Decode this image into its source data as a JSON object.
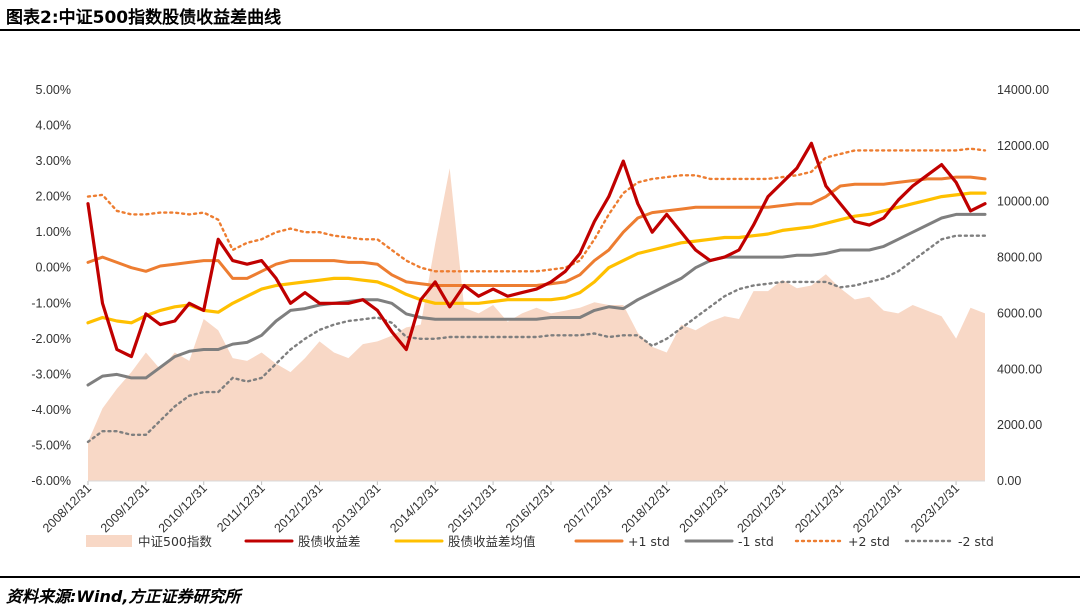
{
  "header": {
    "title": "图表2:中证500指数股债收益差曲线"
  },
  "footer": {
    "source": "资料来源:Wind,方正证券研究所"
  },
  "colors": {
    "index_area": "#f8d8c6",
    "spread": "#c00000",
    "mean": "#ffc000",
    "plus1": "#ed7d31",
    "minus1": "#7f7f7f",
    "plus2": "#ed7d31",
    "minus2": "#7f7f7f"
  },
  "chart_data": {
    "type": "line",
    "title": "",
    "xlabel": "",
    "ylabel": "",
    "y_left": {
      "ticks": [
        "5.00%",
        "4.00%",
        "3.00%",
        "2.00%",
        "1.00%",
        "0.00%",
        "-1.00%",
        "-2.00%",
        "-3.00%",
        "-4.00%",
        "-5.00%",
        "-6.00%"
      ],
      "range": [
        -6,
        5
      ],
      "unit": "%"
    },
    "y_right": {
      "ticks": [
        "14000.00",
        "12000.00",
        "10000.00",
        "8000.00",
        "6000.00",
        "4000.00",
        "2000.00",
        "0.00"
      ],
      "range": [
        0,
        14000
      ]
    },
    "x_ticks": [
      "2008/12/31",
      "2009/12/31",
      "2010/12/31",
      "2011/12/31",
      "2012/12/31",
      "2013/12/31",
      "2014/12/31",
      "2015/12/31",
      "2016/12/31",
      "2017/12/31",
      "2018/12/31",
      "2019/12/31",
      "2020/12/31",
      "2021/12/31",
      "2022/12/31",
      "2023/12/31"
    ],
    "legend": [
      "中证500指数",
      "股债收益差",
      "股债收益差均值",
      "+1 std",
      "-1 std",
      "+2 std",
      "-2 std"
    ],
    "legend_position": "bottom",
    "grid": false,
    "x_years": [
      2009.0,
      2009.25,
      2009.5,
      2009.75,
      2010.0,
      2010.25,
      2010.5,
      2010.75,
      2011.0,
      2011.25,
      2011.5,
      2011.75,
      2012.0,
      2012.25,
      2012.5,
      2012.75,
      2013.0,
      2013.25,
      2013.5,
      2013.75,
      2014.0,
      2014.25,
      2014.5,
      2014.75,
      2015.0,
      2015.25,
      2015.5,
      2015.75,
      2016.0,
      2016.25,
      2016.5,
      2016.75,
      2017.0,
      2017.25,
      2017.5,
      2017.75,
      2018.0,
      2018.25,
      2018.5,
      2018.75,
      2019.0,
      2019.25,
      2019.5,
      2019.75,
      2020.0,
      2020.25,
      2020.5,
      2020.75,
      2021.0,
      2021.25,
      2021.5,
      2021.75,
      2022.0,
      2022.25,
      2022.5,
      2022.75,
      2023.0,
      2023.25,
      2023.5,
      2023.75,
      2024.0,
      2024.25,
      2024.5
    ],
    "series": [
      {
        "name": "中证500指数",
        "axis": "right",
        "kind": "area",
        "values": [
          1400,
          2600,
          3300,
          3900,
          4600,
          4000,
          4600,
          4300,
          5800,
          5400,
          4400,
          4300,
          4600,
          4200,
          3900,
          4400,
          5000,
          4600,
          4400,
          4900,
          5000,
          5200,
          5500,
          5600,
          8500,
          11200,
          6200,
          6000,
          6300,
          5700,
          6000,
          6200,
          6000,
          6100,
          6200,
          6400,
          6300,
          6300,
          5300,
          4800,
          4600,
          5600,
          5400,
          5700,
          5900,
          5800,
          6800,
          6800,
          7200,
          6900,
          7000,
          7400,
          6900,
          6500,
          6600,
          6100,
          6000,
          6300,
          6100,
          5900,
          5100,
          6200,
          6000
        ]
      },
      {
        "name": "股债收益差",
        "axis": "left",
        "kind": "line",
        "values": [
          1.8,
          -1.0,
          -2.3,
          -2.5,
          -1.3,
          -1.6,
          -1.5,
          -1.0,
          -1.2,
          0.8,
          0.2,
          0.1,
          0.2,
          -0.3,
          -1.0,
          -0.7,
          -1.0,
          -1.0,
          -1.0,
          -0.9,
          -1.2,
          -1.8,
          -2.3,
          -0.9,
          -0.4,
          -1.1,
          -0.5,
          -0.8,
          -0.6,
          -0.8,
          -0.7,
          -0.6,
          -0.4,
          -0.1,
          0.4,
          1.3,
          2.0,
          3.0,
          1.8,
          1.0,
          1.5,
          1.0,
          0.5,
          0.2,
          0.3,
          0.5,
          1.2,
          2.0,
          2.4,
          2.8,
          3.5,
          2.3,
          1.8,
          1.3,
          1.2,
          1.4,
          1.9,
          2.3,
          2.6,
          2.9,
          2.4,
          1.6,
          1.8
        ]
      },
      {
        "name": "股债收益差均值",
        "axis": "left",
        "kind": "line",
        "values": [
          -1.55,
          -1.4,
          -1.5,
          -1.55,
          -1.35,
          -1.2,
          -1.1,
          -1.05,
          -1.2,
          -1.25,
          -1.0,
          -0.8,
          -0.6,
          -0.5,
          -0.45,
          -0.4,
          -0.35,
          -0.3,
          -0.3,
          -0.35,
          -0.4,
          -0.55,
          -0.75,
          -0.9,
          -1.0,
          -1.0,
          -1.0,
          -1.0,
          -0.95,
          -0.9,
          -0.9,
          -0.9,
          -0.9,
          -0.85,
          -0.7,
          -0.4,
          0.0,
          0.2,
          0.4,
          0.5,
          0.6,
          0.7,
          0.75,
          0.8,
          0.85,
          0.85,
          0.9,
          0.95,
          1.05,
          1.1,
          1.15,
          1.25,
          1.35,
          1.45,
          1.5,
          1.6,
          1.7,
          1.8,
          1.9,
          2.0,
          2.05,
          2.1,
          2.1
        ]
      },
      {
        "name": "+1 std",
        "axis": "left",
        "kind": "line",
        "values": [
          0.15,
          0.3,
          0.15,
          0.0,
          -0.1,
          0.05,
          0.1,
          0.15,
          0.2,
          0.2,
          -0.3,
          -0.3,
          -0.1,
          0.1,
          0.2,
          0.2,
          0.2,
          0.2,
          0.15,
          0.15,
          0.1,
          -0.2,
          -0.4,
          -0.45,
          -0.5,
          -0.5,
          -0.5,
          -0.5,
          -0.5,
          -0.5,
          -0.5,
          -0.5,
          -0.45,
          -0.4,
          -0.2,
          0.2,
          0.5,
          1.0,
          1.4,
          1.55,
          1.6,
          1.65,
          1.7,
          1.7,
          1.7,
          1.7,
          1.7,
          1.7,
          1.75,
          1.8,
          1.8,
          2.0,
          2.3,
          2.35,
          2.35,
          2.35,
          2.4,
          2.45,
          2.5,
          2.5,
          2.55,
          2.55,
          2.5
        ]
      },
      {
        "name": "-1 std",
        "axis": "left",
        "kind": "line",
        "values": [
          -3.3,
          -3.05,
          -3.0,
          -3.1,
          -3.1,
          -2.8,
          -2.5,
          -2.35,
          -2.3,
          -2.3,
          -2.15,
          -2.1,
          -1.9,
          -1.5,
          -1.2,
          -1.15,
          -1.05,
          -1.0,
          -0.95,
          -0.9,
          -0.9,
          -1.0,
          -1.3,
          -1.4,
          -1.45,
          -1.45,
          -1.45,
          -1.45,
          -1.45,
          -1.45,
          -1.45,
          -1.45,
          -1.4,
          -1.4,
          -1.4,
          -1.2,
          -1.1,
          -1.15,
          -0.9,
          -0.7,
          -0.5,
          -0.3,
          0.0,
          0.2,
          0.3,
          0.3,
          0.3,
          0.3,
          0.3,
          0.35,
          0.35,
          0.4,
          0.5,
          0.5,
          0.5,
          0.6,
          0.8,
          1.0,
          1.2,
          1.4,
          1.5,
          1.5,
          1.5
        ]
      },
      {
        "name": "+2 std",
        "axis": "left",
        "kind": "line",
        "values": [
          2.0,
          2.05,
          1.6,
          1.5,
          1.5,
          1.55,
          1.55,
          1.5,
          1.55,
          1.35,
          0.5,
          0.7,
          0.8,
          1.0,
          1.1,
          1.0,
          1.0,
          0.9,
          0.85,
          0.8,
          0.8,
          0.5,
          0.2,
          0.0,
          -0.1,
          -0.1,
          -0.1,
          -0.1,
          -0.1,
          -0.1,
          -0.1,
          -0.1,
          -0.05,
          0.0,
          0.2,
          0.8,
          1.5,
          2.1,
          2.4,
          2.5,
          2.55,
          2.6,
          2.6,
          2.5,
          2.5,
          2.5,
          2.5,
          2.5,
          2.55,
          2.6,
          2.7,
          3.1,
          3.2,
          3.3,
          3.3,
          3.3,
          3.3,
          3.3,
          3.3,
          3.3,
          3.3,
          3.35,
          3.3
        ]
      },
      {
        "name": "-2 std",
        "axis": "left",
        "kind": "line",
        "values": [
          -4.9,
          -4.6,
          -4.6,
          -4.7,
          -4.7,
          -4.3,
          -3.9,
          -3.6,
          -3.5,
          -3.5,
          -3.1,
          -3.2,
          -3.1,
          -2.7,
          -2.3,
          -2.0,
          -1.75,
          -1.6,
          -1.5,
          -1.45,
          -1.4,
          -1.55,
          -1.95,
          -2.0,
          -2.0,
          -1.95,
          -1.95,
          -1.95,
          -1.95,
          -1.95,
          -1.95,
          -1.95,
          -1.9,
          -1.9,
          -1.9,
          -1.85,
          -1.95,
          -1.9,
          -1.9,
          -2.2,
          -2.0,
          -1.7,
          -1.4,
          -1.1,
          -0.8,
          -0.6,
          -0.5,
          -0.45,
          -0.4,
          -0.4,
          -0.4,
          -0.4,
          -0.55,
          -0.5,
          -0.4,
          -0.3,
          -0.1,
          0.2,
          0.5,
          0.8,
          0.9,
          0.9,
          0.9
        ]
      }
    ]
  }
}
